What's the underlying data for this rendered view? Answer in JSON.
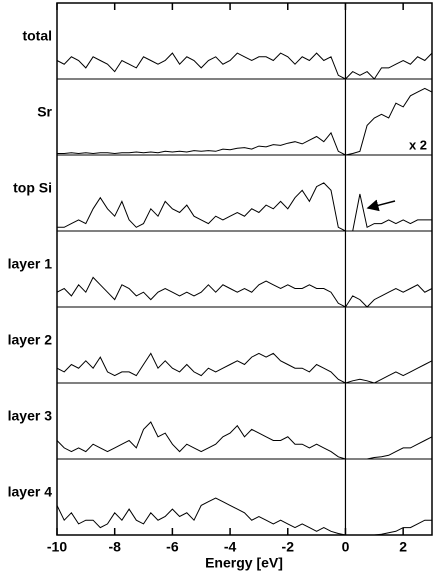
{
  "chart_data": {
    "type": "line",
    "xlabel": "Energy [eV]",
    "x": [
      -10,
      -9.75,
      -9.5,
      -9.25,
      -9,
      -8.75,
      -8.5,
      -8.25,
      -8,
      -7.75,
      -7.5,
      -7.25,
      -7,
      -6.75,
      -6.5,
      -6.25,
      -6,
      -5.75,
      -5.5,
      -5.25,
      -5,
      -4.75,
      -4.5,
      -4.25,
      -4,
      -3.75,
      -3.5,
      -3.25,
      -3,
      -2.75,
      -2.5,
      -2.25,
      -2,
      -1.75,
      -1.5,
      -1.25,
      -1,
      -0.75,
      -0.5,
      -0.25,
      0,
      0.25,
      0.5,
      0.75,
      1,
      1.25,
      1.5,
      1.75,
      2,
      2.25,
      2.5,
      2.75,
      3
    ],
    "series": [
      {
        "name": "total",
        "color": "#000000",
        "values": [
          2.5,
          2,
          3,
          2.5,
          1.5,
          3,
          2.5,
          2,
          1,
          2.5,
          2,
          1.5,
          3,
          2.5,
          2,
          2.5,
          3.5,
          2,
          3,
          2.5,
          1.5,
          2.5,
          3,
          2,
          2.5,
          3.5,
          3,
          2.5,
          3,
          3,
          2.5,
          3.5,
          3,
          2,
          3,
          2.5,
          3.5,
          2.5,
          3,
          0.5,
          0,
          1,
          0.5,
          1,
          0,
          1.5,
          1.5,
          2,
          2.5,
          2,
          3,
          2.5,
          3.5
        ]
      },
      {
        "name": "Sr",
        "color": "#000000",
        "values": [
          0.2,
          0.2,
          0.3,
          0.2,
          0.3,
          0.2,
          0.3,
          0.3,
          0.2,
          0.3,
          0.3,
          0.4,
          0.3,
          0.4,
          0.3,
          0.5,
          0.4,
          0.5,
          0.4,
          0.6,
          0.5,
          0.6,
          0.5,
          0.8,
          0.7,
          0.9,
          1,
          0.8,
          1.2,
          1.1,
          1.4,
          1.3,
          1.6,
          1.8,
          1.5,
          2,
          2.5,
          1.8,
          3,
          0.5,
          0,
          0.2,
          0.5,
          4,
          5,
          5.5,
          5,
          7,
          6.5,
          8,
          8.5,
          9,
          8.5
        ]
      },
      {
        "name": "top Si",
        "color": "#000000",
        "values": [
          0.5,
          0.5,
          1,
          1.5,
          1,
          3,
          4.5,
          3,
          2,
          4,
          1.5,
          0.5,
          1,
          3,
          2,
          4,
          3,
          2.5,
          3.5,
          2,
          1.5,
          1,
          2,
          1.5,
          2,
          2.5,
          2,
          3,
          2.5,
          3.5,
          3,
          4,
          3,
          4.5,
          5.5,
          4,
          6,
          6.5,
          5.5,
          0.5,
          0,
          0,
          5,
          0.5,
          1,
          1,
          1.5,
          1,
          1.5,
          1,
          1.5,
          1.5,
          1.5
        ]
      },
      {
        "name": "layer 1",
        "color": "#000000",
        "values": [
          2,
          2.5,
          1.5,
          3,
          2,
          4,
          3,
          2,
          1,
          3,
          2.5,
          1.5,
          2,
          1,
          2,
          2.5,
          2,
          1.5,
          2,
          1.5,
          2,
          3,
          2,
          3,
          2.5,
          2,
          2.5,
          2,
          3,
          3.5,
          3,
          2.5,
          3,
          2.5,
          2.5,
          3,
          2.5,
          2.5,
          2,
          0.5,
          0,
          1.5,
          1,
          0,
          1,
          1.5,
          2,
          2.5,
          2,
          2.5,
          3,
          2,
          2.5
        ]
      },
      {
        "name": "layer 2",
        "color": "#000000",
        "values": [
          2,
          1.5,
          2.5,
          2,
          3,
          2,
          3.5,
          1.5,
          1,
          1.5,
          1.5,
          1,
          2.5,
          4,
          2,
          3,
          2,
          1.5,
          2.5,
          1.5,
          1,
          2,
          1.5,
          2,
          2.5,
          3,
          2.5,
          3.5,
          4,
          3.5,
          4,
          3,
          2.5,
          2,
          2,
          1.5,
          2.5,
          2,
          1.5,
          0.5,
          0,
          0.3,
          0.5,
          0.3,
          0,
          0.5,
          1,
          1.5,
          1,
          1.5,
          2,
          2.5,
          3
        ]
      },
      {
        "name": "layer 3",
        "color": "#000000",
        "values": [
          2.5,
          1.5,
          1,
          1.5,
          1,
          2,
          1.5,
          1,
          1.5,
          2,
          2.5,
          1.5,
          4,
          5,
          3,
          3.5,
          2,
          1,
          2,
          1.5,
          1,
          1.5,
          2,
          3,
          3.5,
          4.5,
          3,
          4,
          3.5,
          3,
          2.5,
          2.5,
          3,
          2,
          2,
          1.5,
          2,
          1.5,
          1,
          0.3,
          0,
          0,
          0,
          0,
          0.2,
          0.3,
          0.5,
          1,
          1.5,
          1.5,
          2,
          2.5,
          3
        ]
      },
      {
        "name": "layer 4",
        "color": "#000000",
        "values": [
          4,
          2,
          3,
          1.5,
          2,
          2,
          1,
          1.5,
          3,
          2,
          3.5,
          2,
          1.5,
          3,
          2,
          2.5,
          3.5,
          2.5,
          3,
          2,
          4,
          4.5,
          5,
          4.5,
          4,
          3.5,
          3,
          2,
          2.5,
          2,
          1.5,
          2,
          1.5,
          1,
          1.5,
          1,
          0.5,
          1,
          0.5,
          0.2,
          0,
          0,
          0,
          0,
          0,
          0.1,
          0.3,
          0.5,
          1,
          1,
          1.5,
          2,
          2
        ]
      }
    ],
    "xlim": [
      -10,
      3
    ],
    "xticks": [
      -10,
      -8,
      -6,
      -4,
      -2,
      0,
      2
    ],
    "ylim": [
      0,
      10
    ],
    "vline": 0,
    "annotations": [
      {
        "text": "x 2"
      }
    ]
  }
}
